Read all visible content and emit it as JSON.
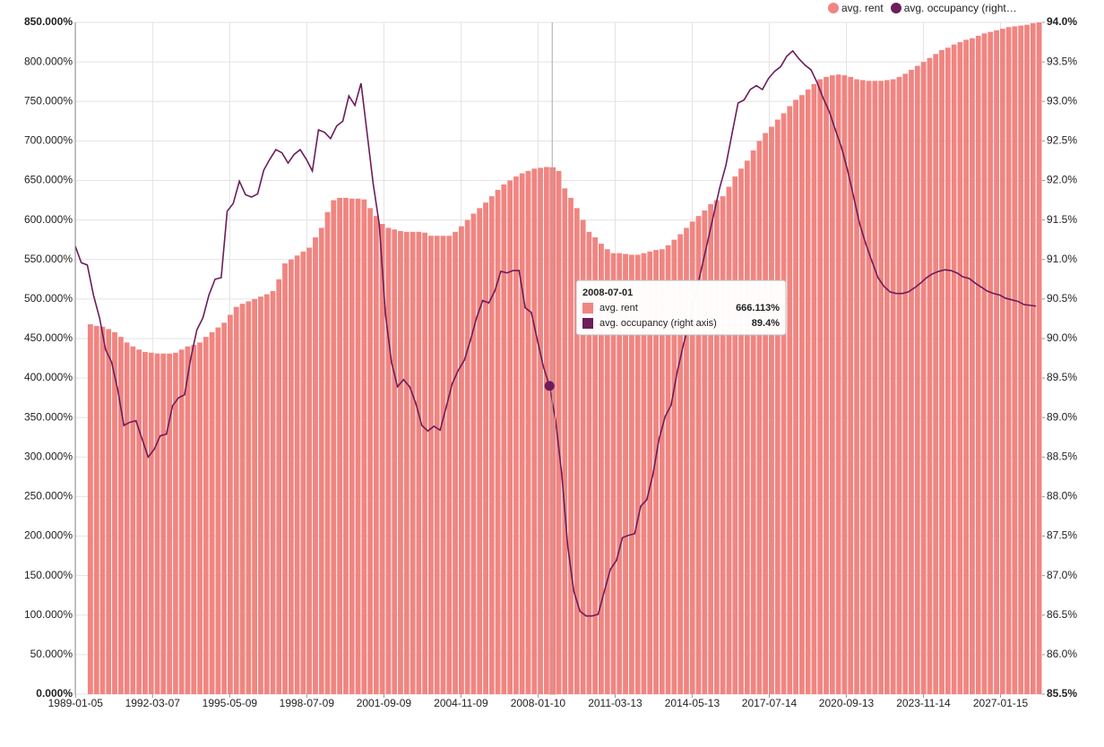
{
  "chart_data": {
    "type": "bar-line",
    "x": [
      "1989-01-01",
      "1989-04-01",
      "1989-07-01",
      "1989-10-01",
      "1990-01-01",
      "1990-04-01",
      "1990-07-01",
      "1990-10-01",
      "1991-01-01",
      "1991-04-01",
      "1991-07-01",
      "1991-10-01",
      "1992-01-01",
      "1992-04-01",
      "1992-07-01",
      "1992-10-01",
      "1993-01-01",
      "1993-04-01",
      "1993-07-01",
      "1993-10-01",
      "1994-01-01",
      "1994-04-01",
      "1994-07-01",
      "1994-10-01",
      "1995-01-01",
      "1995-04-01",
      "1995-07-01",
      "1995-10-01",
      "1996-01-01",
      "1996-04-01",
      "1996-07-01",
      "1996-10-01",
      "1997-01-01",
      "1997-04-01",
      "1997-07-01",
      "1997-10-01",
      "1998-01-01",
      "1998-04-01",
      "1998-07-01",
      "1998-10-01",
      "1999-01-01",
      "1999-04-01",
      "1999-07-01",
      "1999-10-01",
      "2000-01-01",
      "2000-04-01",
      "2000-07-01",
      "2000-10-01",
      "2001-01-01",
      "2001-04-01",
      "2001-07-01",
      "2001-10-01",
      "2002-01-01",
      "2002-04-01",
      "2002-07-01",
      "2002-10-01",
      "2003-01-01",
      "2003-04-01",
      "2003-07-01",
      "2003-10-01",
      "2004-01-01",
      "2004-04-01",
      "2004-07-01",
      "2004-10-01",
      "2005-01-01",
      "2005-04-01",
      "2005-07-01",
      "2005-10-01",
      "2006-01-01",
      "2006-04-01",
      "2006-07-01",
      "2006-10-01",
      "2007-01-01",
      "2007-04-01",
      "2007-07-01",
      "2007-10-01",
      "2008-01-01",
      "2008-04-01",
      "2008-07-01",
      "2008-10-01",
      "2009-01-01",
      "2009-04-01",
      "2009-07-01",
      "2009-10-01",
      "2010-01-01",
      "2010-04-01",
      "2010-07-01",
      "2010-10-01",
      "2011-01-01",
      "2011-04-01",
      "2011-07-01",
      "2011-10-01",
      "2012-01-01",
      "2012-04-01",
      "2012-07-01",
      "2012-10-01",
      "2013-01-01",
      "2013-04-01",
      "2013-07-01",
      "2013-10-01",
      "2014-01-01",
      "2014-04-01",
      "2014-07-01",
      "2014-10-01",
      "2015-01-01",
      "2015-04-01",
      "2015-07-01",
      "2015-10-01",
      "2016-01-01",
      "2016-04-01",
      "2016-07-01",
      "2016-10-01",
      "2017-01-01",
      "2017-04-01",
      "2017-07-01",
      "2017-10-01",
      "2018-01-01",
      "2018-04-01",
      "2018-07-01",
      "2018-10-01",
      "2019-01-01",
      "2019-04-01",
      "2019-07-01",
      "2019-10-01",
      "2020-01-01",
      "2020-04-01",
      "2020-07-01",
      "2020-10-01",
      "2021-01-01",
      "2021-04-01",
      "2021-07-01",
      "2021-10-01",
      "2022-01-01",
      "2022-04-01",
      "2022-07-01",
      "2022-10-01",
      "2023-01-01",
      "2023-04-01",
      "2023-07-01",
      "2023-10-01",
      "2024-01-01",
      "2024-04-01",
      "2024-07-01",
      "2024-10-01",
      "2025-01-01",
      "2025-04-01",
      "2025-07-01",
      "2025-10-01",
      "2026-01-01",
      "2026-04-01",
      "2026-07-01",
      "2026-10-01",
      "2027-01-01",
      "2027-04-01",
      "2027-07-01",
      "2027-10-01",
      "2028-01-01",
      "2028-04-01",
      "2028-07-01"
    ],
    "series": [
      {
        "name": "avg. rent",
        "color": "#f08581",
        "kind": "bar",
        "values": [
          null,
          null,
          468,
          466,
          465,
          462,
          458,
          452,
          445,
          440,
          436,
          433,
          432,
          431,
          431,
          431,
          432,
          436,
          440,
          442,
          445,
          452,
          458,
          464,
          470,
          480,
          490,
          494,
          497,
          500,
          503,
          506,
          510,
          525,
          545,
          550,
          555,
          560,
          565,
          578,
          590,
          610,
          625,
          628,
          628,
          627,
          627,
          626,
          615,
          605,
          595,
          590,
          588,
          586,
          585,
          585,
          585,
          584,
          580,
          580,
          580,
          580,
          585,
          592,
          600,
          608,
          615,
          622,
          630,
          638,
          645,
          650,
          655,
          659,
          662,
          665,
          666,
          667,
          666.113,
          662,
          640,
          628,
          615,
          600,
          585,
          578,
          570,
          563,
          558,
          558,
          557,
          556,
          556,
          558,
          560,
          562,
          563,
          568,
          575,
          582,
          590,
          598,
          605,
          612,
          620,
          625,
          630,
          642,
          655,
          665,
          675,
          688,
          700,
          710,
          718,
          727,
          735,
          744,
          752,
          758,
          765,
          772,
          778,
          781,
          783,
          784,
          783,
          781,
          778,
          777,
          776,
          776,
          776,
          777,
          778,
          781,
          785,
          790,
          795,
          800,
          805,
          810,
          815,
          818,
          822,
          825,
          828,
          830,
          833,
          836,
          838,
          840,
          842,
          844,
          845,
          846,
          847,
          849,
          850
        ]
      },
      {
        "name": "avg. occupancy (right axis)",
        "color": "#6b1d5c",
        "kind": "line",
        "axis": "y2",
        "values": [
          91.17,
          90.96,
          90.93,
          90.55,
          90.26,
          89.86,
          89.7,
          89.35,
          88.9,
          88.94,
          88.96,
          88.73,
          88.5,
          88.6,
          88.77,
          88.79,
          89.15,
          89.25,
          89.29,
          89.75,
          90.11,
          90.26,
          90.55,
          90.75,
          90.77,
          91.61,
          91.71,
          91.99,
          91.82,
          91.79,
          91.83,
          92.13,
          92.27,
          92.39,
          92.35,
          92.22,
          92.33,
          92.39,
          92.27,
          92.12,
          92.64,
          92.61,
          92.53,
          92.69,
          92.75,
          93.07,
          92.95,
          93.23,
          92.59,
          91.96,
          91.45,
          90.32,
          89.7,
          89.39,
          89.48,
          89.39,
          89.18,
          88.9,
          88.83,
          88.89,
          88.84,
          89.13,
          89.43,
          89.6,
          89.73,
          89.98,
          90.26,
          90.48,
          90.45,
          90.6,
          90.85,
          90.83,
          90.86,
          90.86,
          90.39,
          90.33,
          89.98,
          89.64,
          89.4,
          88.96,
          88.28,
          87.37,
          86.8,
          86.55,
          86.49,
          86.49,
          86.51,
          86.8,
          87.08,
          87.19,
          87.48,
          87.51,
          87.53,
          87.88,
          87.96,
          88.28,
          88.73,
          89.01,
          89.16,
          89.58,
          89.92,
          90.21,
          90.55,
          90.89,
          91.23,
          91.57,
          91.91,
          92.19,
          92.59,
          92.98,
          93.02,
          93.15,
          93.2,
          93.15,
          93.29,
          93.38,
          93.44,
          93.57,
          93.64,
          93.54,
          93.46,
          93.4,
          93.24,
          93.04,
          92.87,
          92.64,
          92.42,
          92.13,
          91.79,
          91.45,
          91.2,
          90.98,
          90.77,
          90.66,
          90.59,
          90.57,
          90.57,
          90.59,
          90.64,
          90.7,
          90.77,
          90.82,
          90.85,
          90.87,
          90.86,
          90.83,
          90.78,
          90.76,
          90.7,
          90.65,
          90.6,
          90.57,
          90.55,
          90.51,
          90.49,
          90.47,
          90.43,
          90.42,
          90.41
        ]
      }
    ],
    "xlim": [
      "1989-01-01",
      "2028-10-01"
    ],
    "xticks": [
      "1989-01-05",
      "1992-03-07",
      "1995-05-09",
      "1998-07-09",
      "2001-09-09",
      "2004-11-09",
      "2008-01-10",
      "2011-03-13",
      "2014-05-13",
      "2017-07-14",
      "2020-09-13",
      "2023-11-14",
      "2027-01-15"
    ],
    "ylim": [
      0,
      850
    ],
    "yticks": [
      {
        "value": 0,
        "label": "0.000%"
      },
      {
        "value": 50,
        "label": "50.000%"
      },
      {
        "value": 100,
        "label": "100.000%"
      },
      {
        "value": 150,
        "label": "150.000%"
      },
      {
        "value": 200,
        "label": "200.000%"
      },
      {
        "value": 250,
        "label": "250.000%"
      },
      {
        "value": 300,
        "label": "300.000%"
      },
      {
        "value": 350,
        "label": "350.000%"
      },
      {
        "value": 400,
        "label": "400.000%"
      },
      {
        "value": 450,
        "label": "450.000%"
      },
      {
        "value": 500,
        "label": "500.000%"
      },
      {
        "value": 550,
        "label": "550.000%"
      },
      {
        "value": 600,
        "label": "600.000%"
      },
      {
        "value": 650,
        "label": "650.000%"
      },
      {
        "value": 700,
        "label": "700.000%"
      },
      {
        "value": 750,
        "label": "750.000%"
      },
      {
        "value": 800,
        "label": "800.000%"
      },
      {
        "value": 850,
        "label": "850.000%"
      }
    ],
    "y2lim": [
      85.5,
      94
    ],
    "y2ticks": [
      {
        "value": 85.5,
        "label": "85.5%"
      },
      {
        "value": 86,
        "label": "86.0%"
      },
      {
        "value": 86.5,
        "label": "86.5%"
      },
      {
        "value": 87,
        "label": "87.0%"
      },
      {
        "value": 87.5,
        "label": "87.5%"
      },
      {
        "value": 88,
        "label": "88.0%"
      },
      {
        "value": 88.5,
        "label": "88.5%"
      },
      {
        "value": 89,
        "label": "89.0%"
      },
      {
        "value": 89.5,
        "label": "89.5%"
      },
      {
        "value": 90,
        "label": "90.0%"
      },
      {
        "value": 90.5,
        "label": "90.5%"
      },
      {
        "value": 91,
        "label": "91.0%"
      },
      {
        "value": 91.5,
        "label": "91.5%"
      },
      {
        "value": 92,
        "label": "92.0%"
      },
      {
        "value": 92.5,
        "label": "92.5%"
      },
      {
        "value": 93,
        "label": "93.0%"
      },
      {
        "value": 93.5,
        "label": "93.5%"
      },
      {
        "value": 94,
        "label": "94.0%"
      }
    ],
    "grid": true,
    "legend": "top-right",
    "tooltip": {
      "x": "2008-07-01",
      "values": [
        666.113,
        89.4
      ],
      "value_labels": [
        "666.113%",
        "89.4%"
      ]
    }
  }
}
